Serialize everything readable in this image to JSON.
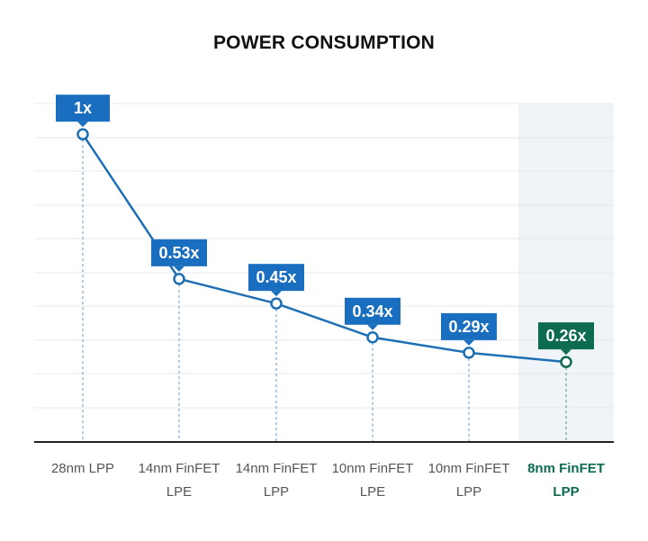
{
  "chart_data": {
    "type": "line",
    "title": "POWER CONSUMPTION",
    "xlabel": "",
    "ylabel": "",
    "categories": [
      [
        "28nm LPP"
      ],
      [
        "14nm FinFET",
        "LPE"
      ],
      [
        "14nm FinFET",
        "LPP"
      ],
      [
        "10nm FinFET",
        "LPE"
      ],
      [
        "10nm FinFET",
        "LPP"
      ],
      [
        "8nm FinFET",
        "LPP"
      ]
    ],
    "series": [
      {
        "values": [
          1,
          0.53,
          0.45,
          0.34,
          0.29,
          0.26
        ]
      }
    ],
    "data_labels": [
      "1x",
      "0.53x",
      "0.45x",
      "0.34x",
      "0.29x",
      "0.26x"
    ],
    "highlighted_category_index": 5,
    "ylim": [
      0,
      1.1
    ],
    "grid": true,
    "legend": "none",
    "colors": {
      "line": "#1f6fb5",
      "label_bg": "#1a6ec0",
      "highlight": "#0d6b52",
      "highlight_band": "#eef4f8",
      "grid": "#e4e8ec",
      "axis": "#222222",
      "tick_text": "#555555"
    }
  }
}
